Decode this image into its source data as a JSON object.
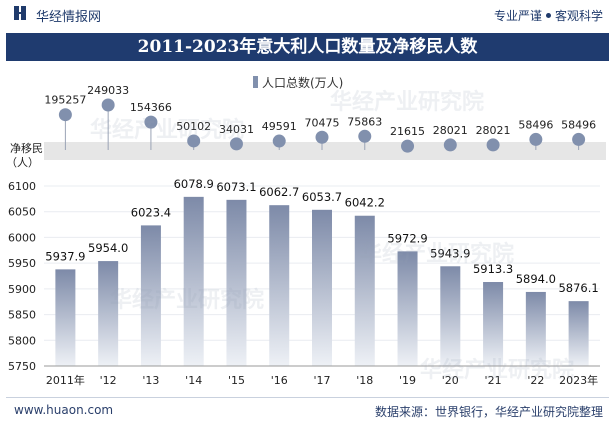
{
  "header": {
    "brand": "华经情报网",
    "tagline_left": "专业严谨",
    "tagline_right": "客观科学",
    "title": "2011-2023年意大利人口数量及净移民人数"
  },
  "footer": {
    "url": "www.huaon.com",
    "source": "数据来源：世界银行，华经产业研究院整理"
  },
  "watermark": "华经产业研究院",
  "colors": {
    "bar_top": "#7d8aa8",
    "bar_bottom": "#eef1f6",
    "dot": "#8190ad",
    "title_bg": "#1f3b6f",
    "band_bg": "#e6e6e6"
  },
  "chart_data": {
    "type": "bar",
    "categories": [
      "2011年",
      "'12",
      "'13",
      "'14",
      "'15",
      "'16",
      "'17",
      "'18",
      "'19",
      "'20",
      "'21",
      "'22",
      "2023年"
    ],
    "series": [
      {
        "name": "人口总数(万人)",
        "values": [
          5937.9,
          5954.0,
          6023.4,
          6078.9,
          6073.1,
          6062.7,
          6053.7,
          6042.2,
          5972.9,
          5943.9,
          5913.3,
          5894.0,
          5876.1
        ],
        "labels": [
          "5937.9",
          "5954.0",
          "6023.4",
          "6078.9",
          "6073.1",
          "6062.7",
          "6053.7",
          "6042.2",
          "5972.9",
          "5943.9",
          "5913.3",
          "5894.0",
          "5876.1"
        ]
      }
    ],
    "ylim": [
      5750,
      6100
    ],
    "yticks": [
      5750,
      5800,
      5850,
      5900,
      5950,
      6000,
      6050,
      6100
    ],
    "legend_position": "top-center",
    "net_migration": {
      "label_line1": "净移民",
      "label_line2": "（人）",
      "values": [
        195257,
        249033,
        154366,
        50102,
        34031,
        49591,
        70475,
        75863,
        21615,
        28021,
        28021,
        58496,
        58496
      ],
      "range": [
        0,
        260000
      ]
    }
  }
}
